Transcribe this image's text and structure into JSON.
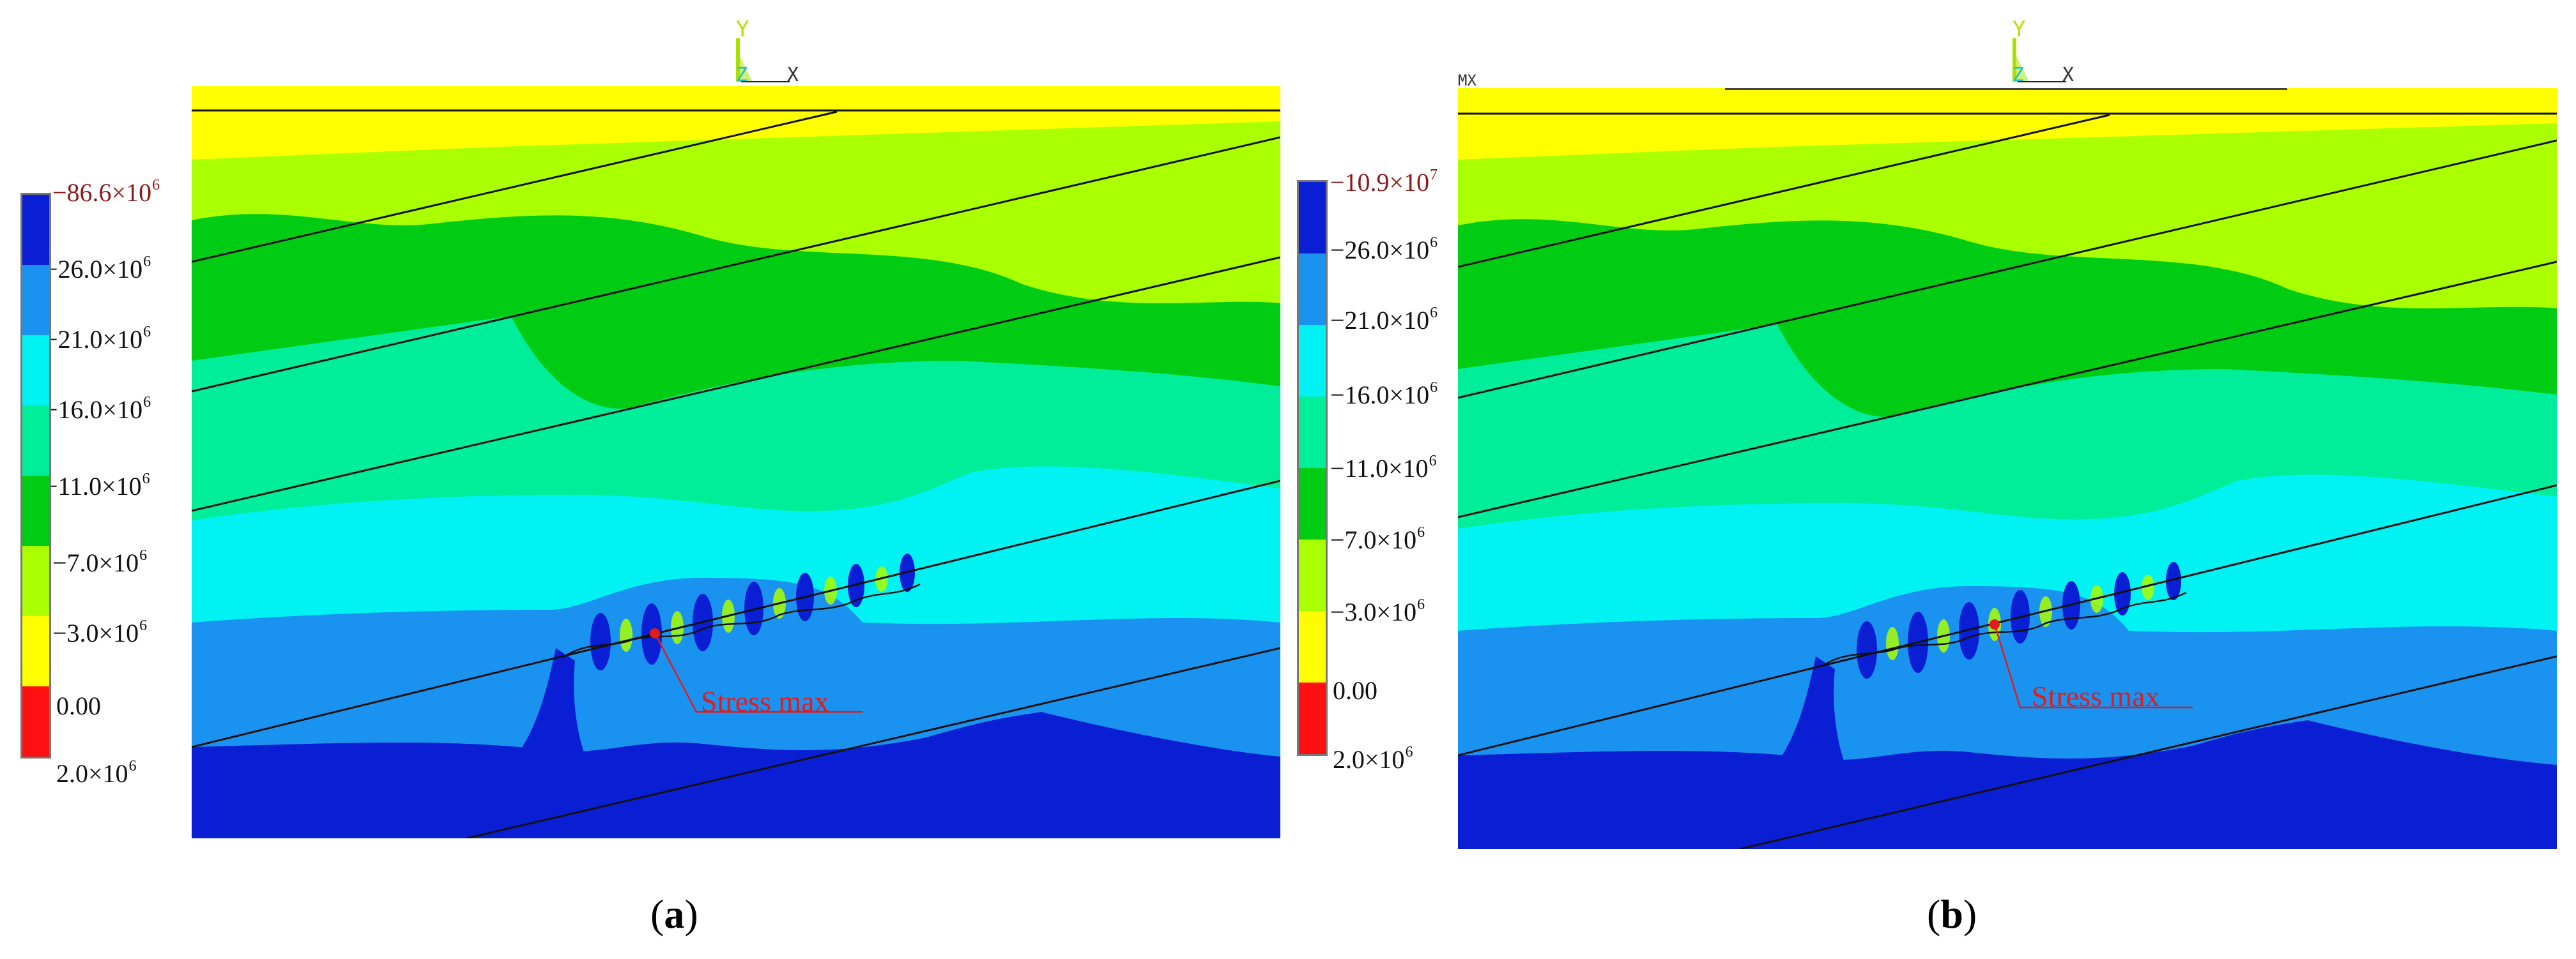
{
  "panels": [
    {
      "id": "a",
      "caption_paren_open": "(",
      "caption_letter": "a",
      "caption_paren_close": ")",
      "annotation": "Stress max",
      "mx_label": "",
      "triad": {
        "y": "Y",
        "z": "Z",
        "x": "X"
      },
      "legend": [
        {
          "label_mantissa": "−86.6×10",
          "label_exp": "6",
          "is_max": true
        },
        {
          "label_mantissa": "−26.0×10",
          "label_exp": "6",
          "is_max": false
        },
        {
          "label_mantissa": "−21.0×10",
          "label_exp": "6",
          "is_max": false
        },
        {
          "label_mantissa": "−16.0×10",
          "label_exp": "6",
          "is_max": false
        },
        {
          "label_mantissa": "−11.0×10",
          "label_exp": "6",
          "is_max": false
        },
        {
          "label_mantissa": "−7.0×10",
          "label_exp": "6",
          "is_max": false
        },
        {
          "label_mantissa": "−3.0×10",
          "label_exp": "6",
          "is_max": false
        },
        {
          "label_mantissa": "0.00",
          "label_exp": "",
          "is_max": false
        },
        {
          "label_mantissa": "2.0×10",
          "label_exp": "6",
          "is_max": false
        }
      ]
    },
    {
      "id": "b",
      "caption_paren_open": "(",
      "caption_letter": "b",
      "caption_paren_close": ")",
      "annotation": "Stress max",
      "mx_label": "MX",
      "triad": {
        "y": "Y",
        "z": "Z",
        "x": "X"
      },
      "legend": [
        {
          "label_mantissa": "−10.9×10",
          "label_exp": "7",
          "is_max": true
        },
        {
          "label_mantissa": "−26.0×10",
          "label_exp": "6",
          "is_max": false
        },
        {
          "label_mantissa": "−21.0×10",
          "label_exp": "6",
          "is_max": false
        },
        {
          "label_mantissa": "−16.0×10",
          "label_exp": "6",
          "is_max": false
        },
        {
          "label_mantissa": "−11.0×10",
          "label_exp": "6",
          "is_max": false
        },
        {
          "label_mantissa": "−7.0×10",
          "label_exp": "6",
          "is_max": false
        },
        {
          "label_mantissa": "−3.0×10",
          "label_exp": "6",
          "is_max": false
        },
        {
          "label_mantissa": "0.00",
          "label_exp": "",
          "is_max": false
        },
        {
          "label_mantissa": "2.0×10",
          "label_exp": "6",
          "is_max": false
        }
      ]
    }
  ],
  "colors": {
    "band_colors_top_to_bottom": [
      "#0a1fd4",
      "#1a93f0",
      "#00f2f2",
      "#00ee99",
      "#00cc14",
      "#aaff00",
      "#ffff00",
      "#ff1010"
    ],
    "annotation": "#e31b1b",
    "legend_max_label": "#8b1a1a"
  }
}
